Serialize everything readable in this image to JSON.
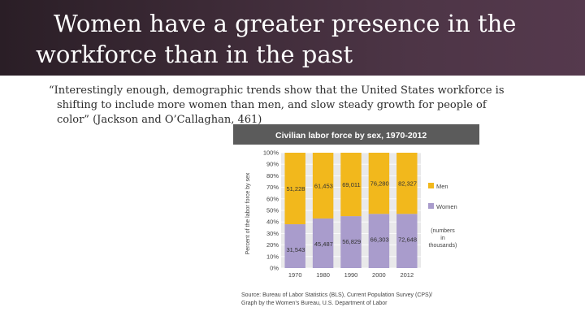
{
  "slide": {
    "title_line1": "Women have a greater presence in the",
    "title_line2": "workforce than in the past",
    "quote_lines": [
      "“Interestingly enough, demographic trends show that the United States workforce is",
      "shifting to include more women than men, and slow steady growth for people of",
      "color” (Jackson and O’Callaghan, 461)"
    ],
    "colors": {
      "banner": "#3c2a36",
      "men": "#f2b81c",
      "women": "#a99ccc"
    }
  },
  "chart_data": {
    "type": "bar",
    "stacked": true,
    "title": "Civilian labor force by sex, 1970-2012",
    "ylabel": "Percent of the labor force by sex",
    "xlabel": "",
    "categories": [
      "1970",
      "1980",
      "1990",
      "2000",
      "2012"
    ],
    "yticks": [
      "100%",
      "90%",
      "80%",
      "70%",
      "60%",
      "50%",
      "40%",
      "30%",
      "20%",
      "10%",
      "0%"
    ],
    "ylim": [
      0,
      100
    ],
    "series": [
      {
        "name": "Women",
        "values": [
          38,
          43,
          45,
          47,
          47
        ],
        "labels": [
          "31,543",
          "45,487",
          "56,829",
          "66,303",
          "72,648"
        ]
      },
      {
        "name": "Men",
        "values": [
          62,
          57,
          55,
          53,
          53
        ],
        "labels": [
          "51,228",
          "61,453",
          "69,011",
          "76,280",
          "82,327"
        ]
      }
    ],
    "legend": {
      "position": "right",
      "note_lines": [
        "(numbers",
        "in",
        "thousands)"
      ]
    },
    "source_lines": [
      "Source: Bureau of Labor Statistics (BLS), Current Population Survey (CPS)/",
      "Graph by the Women’s Bureau, U.S. Department of Labor"
    ]
  }
}
